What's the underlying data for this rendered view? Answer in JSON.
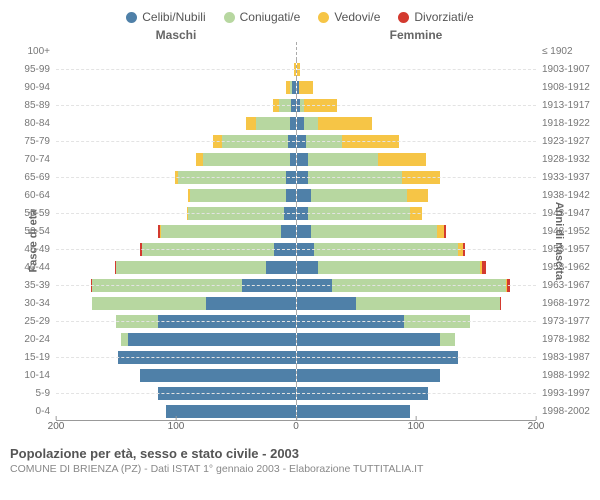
{
  "legend": [
    {
      "label": "Celibi/Nubili",
      "color": "#4f80a8"
    },
    {
      "label": "Coniugati/e",
      "color": "#b7d7a0"
    },
    {
      "label": "Vedovi/e",
      "color": "#f6c546"
    },
    {
      "label": "Divorziati/e",
      "color": "#d33a2f"
    }
  ],
  "gender": {
    "male": "Maschi",
    "female": "Femmine"
  },
  "axis_titles": {
    "left": "Fasce di età",
    "right": "Anni di nascita"
  },
  "x_axis": {
    "max": 200,
    "ticks": [
      200,
      100,
      0,
      100,
      200
    ]
  },
  "footer": {
    "title": "Popolazione per età, sesso e stato civile - 2003",
    "sub": "COMUNE DI BRIENZA (PZ) - Dati ISTAT 1° gennaio 2003 - Elaborazione TUTTITALIA.IT"
  },
  "categories": [
    "celibi",
    "coniugati",
    "vedovi",
    "divorziati"
  ],
  "rows": [
    {
      "age": "100+",
      "birth": "≤ 1902",
      "m": [
        0,
        0,
        0,
        0
      ],
      "f": [
        0,
        0,
        0,
        0
      ]
    },
    {
      "age": "95-99",
      "birth": "1903-1907",
      "m": [
        0,
        0,
        1,
        0
      ],
      "f": [
        0,
        0,
        3,
        0
      ]
    },
    {
      "age": "90-94",
      "birth": "1908-1912",
      "m": [
        3,
        2,
        3,
        0
      ],
      "f": [
        2,
        0,
        12,
        0
      ]
    },
    {
      "age": "85-89",
      "birth": "1913-1917",
      "m": [
        4,
        10,
        5,
        0
      ],
      "f": [
        3,
        3,
        28,
        0
      ]
    },
    {
      "age": "80-84",
      "birth": "1918-1922",
      "m": [
        5,
        28,
        8,
        0
      ],
      "f": [
        6,
        12,
        45,
        0
      ]
    },
    {
      "age": "75-79",
      "birth": "1923-1927",
      "m": [
        6,
        55,
        8,
        0
      ],
      "f": [
        8,
        30,
        48,
        0
      ]
    },
    {
      "age": "70-74",
      "birth": "1928-1932",
      "m": [
        5,
        72,
        6,
        0
      ],
      "f": [
        10,
        58,
        40,
        0
      ]
    },
    {
      "age": "65-69",
      "birth": "1933-1937",
      "m": [
        8,
        90,
        3,
        0
      ],
      "f": [
        10,
        78,
        32,
        0
      ]
    },
    {
      "age": "60-64",
      "birth": "1938-1942",
      "m": [
        8,
        80,
        2,
        0
      ],
      "f": [
        12,
        80,
        18,
        0
      ]
    },
    {
      "age": "55-59",
      "birth": "1943-1947",
      "m": [
        10,
        80,
        1,
        0
      ],
      "f": [
        10,
        85,
        10,
        0
      ]
    },
    {
      "age": "50-54",
      "birth": "1948-1952",
      "m": [
        12,
        100,
        1,
        2
      ],
      "f": [
        12,
        105,
        6,
        2
      ]
    },
    {
      "age": "45-49",
      "birth": "1953-1957",
      "m": [
        18,
        110,
        0,
        2
      ],
      "f": [
        15,
        120,
        4,
        2
      ]
    },
    {
      "age": "40-44",
      "birth": "1958-1962",
      "m": [
        25,
        125,
        0,
        1
      ],
      "f": [
        18,
        135,
        2,
        3
      ]
    },
    {
      "age": "35-39",
      "birth": "1963-1967",
      "m": [
        45,
        125,
        0,
        1
      ],
      "f": [
        30,
        145,
        1,
        2
      ]
    },
    {
      "age": "30-34",
      "birth": "1968-1972",
      "m": [
        75,
        95,
        0,
        0
      ],
      "f": [
        50,
        120,
        0,
        1
      ]
    },
    {
      "age": "25-29",
      "birth": "1973-1977",
      "m": [
        115,
        35,
        0,
        0
      ],
      "f": [
        90,
        55,
        0,
        0
      ]
    },
    {
      "age": "20-24",
      "birth": "1978-1982",
      "m": [
        140,
        6,
        0,
        0
      ],
      "f": [
        120,
        12,
        0,
        0
      ]
    },
    {
      "age": "15-19",
      "birth": "1983-1987",
      "m": [
        148,
        0,
        0,
        0
      ],
      "f": [
        135,
        0,
        0,
        0
      ]
    },
    {
      "age": "10-14",
      "birth": "1988-1992",
      "m": [
        130,
        0,
        0,
        0
      ],
      "f": [
        120,
        0,
        0,
        0
      ]
    },
    {
      "age": "5-9",
      "birth": "1993-1997",
      "m": [
        115,
        0,
        0,
        0
      ],
      "f": [
        110,
        0,
        0,
        0
      ]
    },
    {
      "age": "0-4",
      "birth": "1998-2002",
      "m": [
        108,
        0,
        0,
        0
      ],
      "f": [
        95,
        0,
        0,
        0
      ]
    }
  ]
}
